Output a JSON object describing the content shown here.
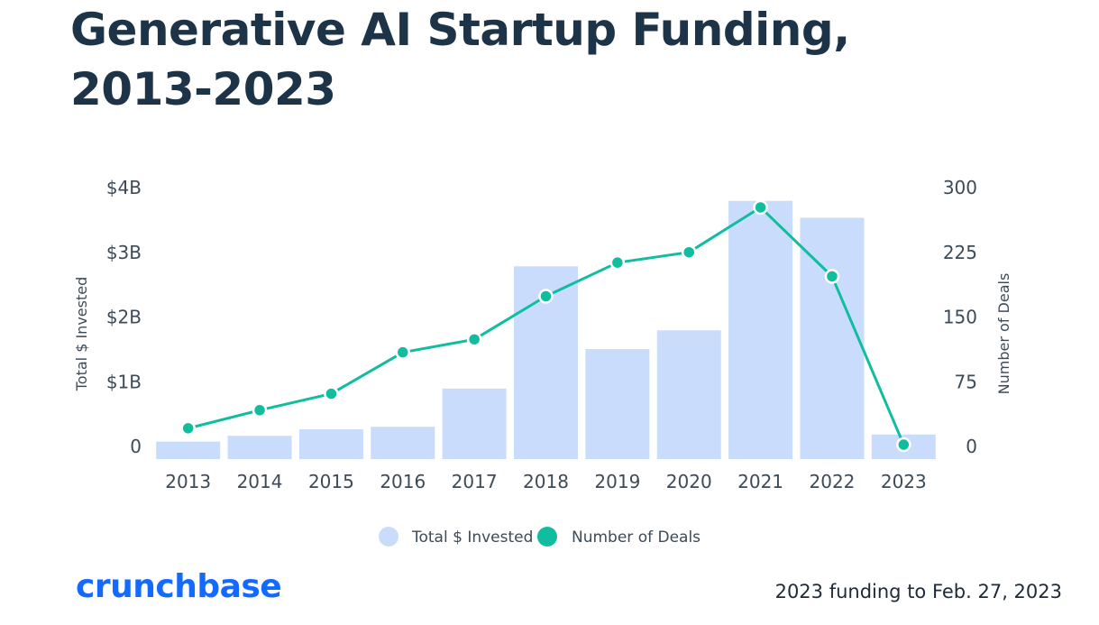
{
  "title": "Generative AI Startup Funding, 2013-2023",
  "footnote": "2023 funding to Feb. 27, 2023",
  "brand": "crunchbase",
  "colors": {
    "bars": "#cadcfc",
    "line": "#10bd9e",
    "title": "#1d3347",
    "brand": "#146aff",
    "text": "#3d4a57"
  },
  "chart_data": {
    "type": "bar+line",
    "categories": [
      "2013",
      "2014",
      "2015",
      "2016",
      "2017",
      "2018",
      "2019",
      "2020",
      "2021",
      "2022",
      "2023"
    ],
    "series": [
      {
        "name": "Total $ Invested",
        "type": "bar",
        "axis": "left",
        "values": [
          0.06,
          0.15,
          0.25,
          0.29,
          0.88,
          2.77,
          1.49,
          1.78,
          3.78,
          3.52,
          0.17
        ]
      },
      {
        "name": "Number of Deals",
        "type": "line",
        "axis": "right",
        "values": [
          20,
          41,
          60,
          108,
          123,
          173,
          212,
          224,
          276,
          196,
          1
        ]
      }
    ],
    "ylabel_left": "Total $ Invested",
    "ylabel_right": "Number of Deals",
    "left_ticks": [
      "0",
      "$1B",
      "$2B",
      "$3B",
      "$4B"
    ],
    "right_ticks": [
      "0",
      "75",
      "150",
      "225",
      "300"
    ],
    "ylim_left": [
      0,
      4
    ],
    "ylim_right": [
      0,
      300
    ],
    "legend": [
      "Total $ Invested",
      "Number of Deals"
    ],
    "legend_position": "bottom-center",
    "grid": false
  }
}
